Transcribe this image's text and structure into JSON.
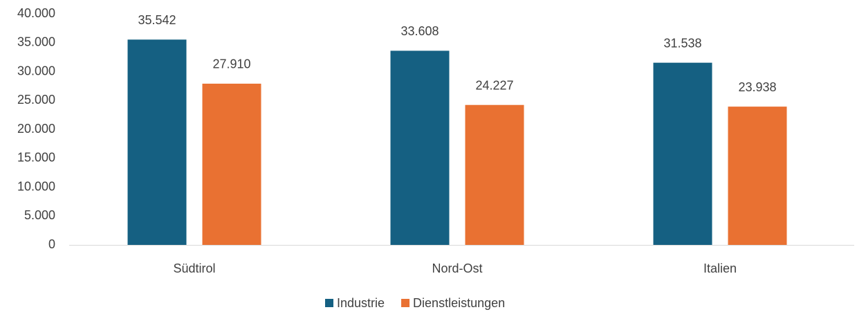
{
  "chart_data": {
    "type": "bar",
    "categories": [
      "Südtirol",
      "Nord-Ost",
      "Italien"
    ],
    "series": [
      {
        "name": "Industrie",
        "color": "#156082",
        "values": [
          35542,
          33608,
          31538
        ],
        "value_labels": [
          "35.542",
          "33.608",
          "31.538"
        ]
      },
      {
        "name": "Dienstleistungen",
        "color": "#e97132",
        "values": [
          27910,
          24227,
          23938
        ],
        "value_labels": [
          "27.910",
          "24.227",
          "23.938"
        ]
      }
    ],
    "ylim": [
      0,
      40000
    ],
    "yticks": [
      {
        "value": 0,
        "label": "0"
      },
      {
        "value": 5000,
        "label": "5.000"
      },
      {
        "value": 10000,
        "label": "10.000"
      },
      {
        "value": 15000,
        "label": "15.000"
      },
      {
        "value": 20000,
        "label": "20.000"
      },
      {
        "value": 25000,
        "label": "25.000"
      },
      {
        "value": 30000,
        "label": "30.000"
      },
      {
        "value": 35000,
        "label": "35.000"
      },
      {
        "value": 40000,
        "label": "40.000"
      }
    ],
    "grid": false,
    "legend": "bottom"
  }
}
